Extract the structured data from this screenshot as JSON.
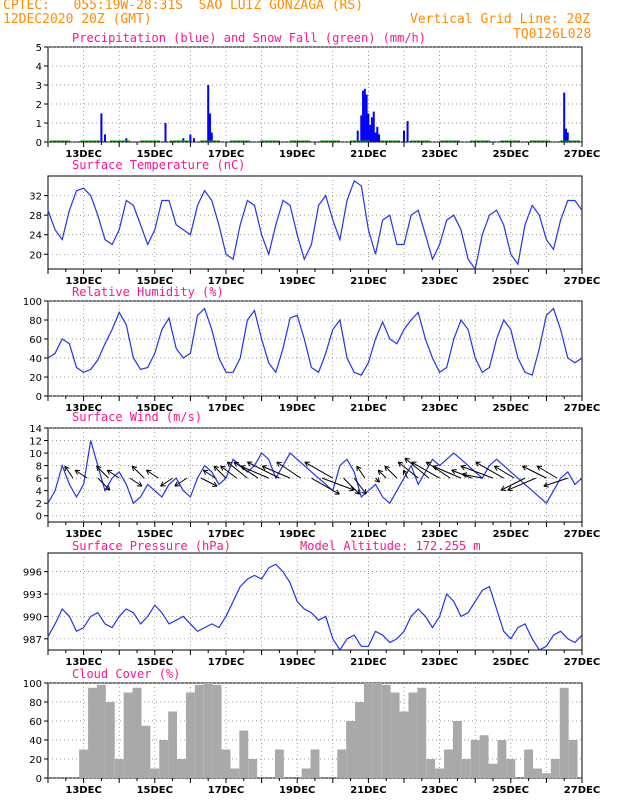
{
  "header": {
    "line1": "CPTEC:   055:19W-28:31S  SAO LUIZ GONZAGA (RS)",
    "line2_left": "12DEC2020 20Z (GMT)",
    "line2_right": "Vertical Grid Line: 20Z",
    "line3_right": "TQ0126L028"
  },
  "days": [
    "13DEC",
    "15DEC",
    "17DEC",
    "19DEC",
    "21DEC",
    "23DEC",
    "25DEC",
    "27DEC"
  ],
  "colors": {
    "title": "#ff1493",
    "header": "#ff8c00",
    "rain": "#0000ff",
    "snow": "#00aa00",
    "line": "#2233ee",
    "cloud": "#a9a9a9"
  },
  "chart_data": [
    {
      "type": "bar",
      "title": "Precipitation (blue) and Snow Fall (green) (mm/h)",
      "ylim": [
        0,
        5
      ],
      "yticks": [
        0,
        1,
        2,
        3,
        4,
        5
      ],
      "series": [
        {
          "name": "Precipitation",
          "points": [
            [
              13.5,
              1.5
            ],
            [
              13.6,
              0.4
            ],
            [
              14.2,
              0.2
            ],
            [
              15.3,
              1.0
            ],
            [
              15.8,
              0.2
            ],
            [
              16.0,
              0.4
            ],
            [
              16.1,
              0.2
            ],
            [
              16.5,
              3.0
            ],
            [
              16.55,
              1.5
            ],
            [
              16.6,
              0.5
            ],
            [
              20.7,
              0.6
            ],
            [
              20.8,
              1.4
            ],
            [
              20.85,
              2.7
            ],
            [
              20.9,
              2.8
            ],
            [
              20.95,
              2.5
            ],
            [
              21.0,
              1.5
            ],
            [
              21.05,
              0.9
            ],
            [
              21.1,
              1.3
            ],
            [
              21.15,
              1.6
            ],
            [
              21.2,
              0.5
            ],
            [
              21.25,
              0.8
            ],
            [
              21.3,
              0.4
            ],
            [
              22.0,
              0.6
            ],
            [
              22.1,
              1.1
            ],
            [
              26.5,
              2.6
            ],
            [
              26.55,
              0.7
            ],
            [
              26.6,
              0.5
            ]
          ]
        },
        {
          "name": "Snow Fall",
          "points": []
        }
      ]
    },
    {
      "type": "line",
      "title": "Surface Temperature (nC)",
      "ylim": [
        17,
        36
      ],
      "yticks": [
        20,
        24,
        28,
        32
      ],
      "x": [
        12.0,
        12.2,
        12.4,
        12.6,
        12.8,
        13.0,
        13.2,
        13.4,
        13.6,
        13.8,
        14.0,
        14.2,
        14.4,
        14.6,
        14.8,
        15.0,
        15.2,
        15.4,
        15.6,
        15.8,
        16.0,
        16.2,
        16.4,
        16.6,
        16.8,
        17.0,
        17.2,
        17.4,
        17.6,
        17.8,
        18.0,
        18.2,
        18.4,
        18.6,
        18.8,
        19.0,
        19.2,
        19.4,
        19.6,
        19.8,
        20.0,
        20.2,
        20.4,
        20.6,
        20.8,
        21.0,
        21.2,
        21.4,
        21.6,
        21.8,
        22.0,
        22.2,
        22.4,
        22.6,
        22.8,
        23.0,
        23.2,
        23.4,
        23.6,
        23.8,
        24.0,
        24.2,
        24.4,
        24.6,
        24.8,
        25.0,
        25.2,
        25.4,
        25.6,
        25.8,
        26.0,
        26.2,
        26.4,
        26.6,
        26.8,
        27.0
      ],
      "values": [
        29,
        25,
        23,
        29,
        33,
        33.5,
        32,
        28,
        23,
        22,
        25,
        31,
        30,
        26,
        22,
        25,
        31,
        31,
        26,
        25,
        24,
        30,
        33,
        31,
        26,
        20,
        19,
        26,
        31,
        30,
        24,
        20,
        26,
        31,
        30,
        24,
        19,
        22,
        30,
        32,
        27,
        23,
        31,
        35,
        34,
        25,
        20,
        27,
        28,
        22,
        22,
        28,
        29,
        24,
        19,
        22,
        27,
        28,
        25,
        19,
        17,
        24,
        28,
        29,
        26,
        20,
        18,
        26,
        30,
        28,
        23,
        21,
        27,
        31,
        31,
        29
      ]
    },
    {
      "type": "line",
      "title": "Relative Humidity (%)",
      "ylim": [
        0,
        100
      ],
      "yticks": [
        0,
        20,
        40,
        60,
        80,
        100
      ],
      "x": [
        12.0,
        12.2,
        12.4,
        12.6,
        12.8,
        13.0,
        13.2,
        13.4,
        13.6,
        13.8,
        14.0,
        14.2,
        14.4,
        14.6,
        14.8,
        15.0,
        15.2,
        15.4,
        15.6,
        15.8,
        16.0,
        16.2,
        16.4,
        16.6,
        16.8,
        17.0,
        17.2,
        17.4,
        17.6,
        17.8,
        18.0,
        18.2,
        18.4,
        18.6,
        18.8,
        19.0,
        19.2,
        19.4,
        19.6,
        19.8,
        20.0,
        20.2,
        20.4,
        20.6,
        20.8,
        21.0,
        21.2,
        21.4,
        21.6,
        21.8,
        22.0,
        22.2,
        22.4,
        22.6,
        22.8,
        23.0,
        23.2,
        23.4,
        23.6,
        23.8,
        24.0,
        24.2,
        24.4,
        24.6,
        24.8,
        25.0,
        25.2,
        25.4,
        25.6,
        25.8,
        26.0,
        26.2,
        26.4,
        26.6,
        26.8,
        27.0
      ],
      "values": [
        40,
        45,
        60,
        55,
        30,
        25,
        28,
        38,
        55,
        70,
        88,
        75,
        40,
        28,
        30,
        45,
        70,
        82,
        50,
        40,
        45,
        85,
        92,
        70,
        40,
        25,
        25,
        40,
        80,
        90,
        60,
        35,
        25,
        50,
        82,
        85,
        60,
        30,
        25,
        45,
        70,
        80,
        40,
        25,
        22,
        35,
        60,
        78,
        60,
        55,
        70,
        80,
        88,
        60,
        40,
        25,
        30,
        60,
        80,
        70,
        40,
        25,
        30,
        60,
        80,
        70,
        40,
        25,
        22,
        50,
        85,
        92,
        70,
        40,
        35,
        40
      ]
    },
    {
      "type": "line",
      "title": "Surface Wind (m/s)",
      "ylim": [
        -1,
        14
      ],
      "yticks": [
        0,
        2,
        4,
        6,
        8,
        10,
        12,
        14
      ],
      "x": [
        12.0,
        12.2,
        12.4,
        12.6,
        12.8,
        13.0,
        13.2,
        13.4,
        13.6,
        13.8,
        14.0,
        14.2,
        14.4,
        14.6,
        14.8,
        15.0,
        15.2,
        15.4,
        15.6,
        15.8,
        16.0,
        16.2,
        16.4,
        16.6,
        16.8,
        17.0,
        17.2,
        17.4,
        17.6,
        17.8,
        18.0,
        18.2,
        18.4,
        18.6,
        18.8,
        19.0,
        19.2,
        19.4,
        19.6,
        19.8,
        20.0,
        20.2,
        20.4,
        20.6,
        20.8,
        21.0,
        21.2,
        21.4,
        21.6,
        21.8,
        22.0,
        22.2,
        22.4,
        22.6,
        22.8,
        23.0,
        23.2,
        23.4,
        23.6,
        23.8,
        24.0,
        24.2,
        24.4,
        24.6,
        24.8,
        25.0,
        25.2,
        25.4,
        25.6,
        25.8,
        26.0,
        26.2,
        26.4,
        26.6,
        26.8,
        27.0
      ],
      "values": [
        2,
        4,
        8,
        5,
        3,
        5,
        12,
        8,
        4,
        6,
        7,
        5,
        2,
        3,
        5,
        4,
        3,
        5,
        6,
        4,
        3,
        6,
        8,
        7,
        5,
        6,
        9,
        8,
        7,
        8,
        10,
        9,
        6,
        8,
        10,
        9,
        8,
        7,
        6,
        5,
        4,
        8,
        9,
        7,
        3,
        4,
        5,
        3,
        2,
        4,
        6,
        8,
        5,
        7,
        9,
        8,
        9,
        10,
        9,
        8,
        7,
        6,
        8,
        9,
        8,
        7,
        6,
        5,
        4,
        3,
        2,
        4,
        6,
        7,
        5,
        6
      ]
    },
    {
      "type": "line",
      "title": "Surface Pressure (hPa)",
      "annotation": "Model Altitude: 172.255 m",
      "ylim": [
        985.5,
        998.5
      ],
      "yticks": [
        987,
        990,
        993,
        996
      ],
      "x": [
        12.0,
        12.2,
        12.4,
        12.6,
        12.8,
        13.0,
        13.2,
        13.4,
        13.6,
        13.8,
        14.0,
        14.2,
        14.4,
        14.6,
        14.8,
        15.0,
        15.2,
        15.4,
        15.6,
        15.8,
        16.0,
        16.2,
        16.4,
        16.6,
        16.8,
        17.0,
        17.2,
        17.4,
        17.6,
        17.8,
        18.0,
        18.2,
        18.4,
        18.6,
        18.8,
        19.0,
        19.2,
        19.4,
        19.6,
        19.8,
        20.0,
        20.2,
        20.4,
        20.6,
        20.8,
        21.0,
        21.2,
        21.4,
        21.6,
        21.8,
        22.0,
        22.2,
        22.4,
        22.6,
        22.8,
        23.0,
        23.2,
        23.4,
        23.6,
        23.8,
        24.0,
        24.2,
        24.4,
        24.6,
        24.8,
        25.0,
        25.2,
        25.4,
        25.6,
        25.8,
        26.0,
        26.2,
        26.4,
        26.6,
        26.8,
        27.0
      ],
      "values": [
        987.3,
        989,
        991,
        990,
        988,
        988.5,
        990,
        990.5,
        989,
        988.5,
        990,
        991,
        990.5,
        989,
        990,
        991.5,
        990.5,
        989,
        989.5,
        990,
        989,
        988,
        988.5,
        989,
        988.5,
        990,
        992,
        994,
        995,
        995.5,
        995,
        996.5,
        997,
        996,
        994.5,
        992,
        991,
        990.5,
        989.5,
        990,
        987,
        985.5,
        987,
        987.5,
        986,
        986,
        988,
        987.5,
        986.5,
        987,
        988,
        990,
        991,
        990,
        988.5,
        990,
        993,
        992,
        990,
        990.5,
        992,
        993.5,
        994,
        991,
        988,
        987,
        988.5,
        989,
        987,
        985.5,
        986,
        987.5,
        988,
        987,
        986.5,
        987.5
      ]
    },
    {
      "type": "bar",
      "title": "Cloud Cover (%)",
      "ylim": [
        0,
        100
      ],
      "yticks": [
        0,
        20,
        40,
        60,
        80,
        100
      ],
      "x": [
        12.0,
        12.25,
        12.5,
        12.75,
        13.0,
        13.25,
        13.5,
        13.75,
        14.0,
        14.25,
        14.5,
        14.75,
        15.0,
        15.25,
        15.5,
        15.75,
        16.0,
        16.25,
        16.5,
        16.75,
        17.0,
        17.25,
        17.5,
        17.75,
        18.0,
        18.25,
        18.5,
        18.75,
        19.0,
        19.25,
        19.5,
        19.75,
        20.0,
        20.25,
        20.5,
        20.75,
        21.0,
        21.25,
        21.5,
        21.75,
        22.0,
        22.25,
        22.5,
        22.75,
        23.0,
        23.25,
        23.5,
        23.75,
        24.0,
        24.25,
        24.5,
        24.75,
        25.0,
        25.25,
        25.5,
        25.75,
        26.0,
        26.25,
        26.5,
        26.75,
        27.0
      ],
      "values": [
        0,
        0,
        0,
        0,
        30,
        95,
        98,
        80,
        20,
        90,
        95,
        55,
        10,
        40,
        70,
        20,
        90,
        98,
        100,
        98,
        30,
        10,
        50,
        20,
        0,
        0,
        30,
        0,
        0,
        10,
        30,
        0,
        0,
        30,
        60,
        80,
        100,
        100,
        98,
        90,
        70,
        90,
        95,
        20,
        10,
        30,
        60,
        20,
        40,
        45,
        15,
        40,
        20,
        0,
        30,
        10,
        5,
        20,
        95,
        40,
        0
      ]
    }
  ],
  "wind_arrows": {
    "x": [
      12.7,
      13.1,
      13.4,
      13.7,
      14.0,
      14.3,
      14.7,
      15.1,
      15.5,
      15.9,
      16.3,
      16.7,
      17.0,
      17.3,
      17.6,
      17.9,
      18.2,
      18.5,
      18.8,
      19.1,
      19.4,
      19.7,
      20.0,
      20.3,
      20.6,
      20.9,
      21.2,
      21.5,
      21.8,
      22.1,
      22.4,
      22.7,
      23.0,
      23.3,
      23.6,
      23.9,
      24.2,
      24.5,
      24.8,
      25.1,
      25.4,
      25.7,
      26.0,
      26.3,
      26.6
    ],
    "u": [
      -2,
      -3,
      3,
      -3,
      -3,
      3,
      -3,
      -3,
      -3,
      -3,
      4,
      -3,
      -3,
      -4,
      -5,
      -6,
      -7,
      -8,
      -7,
      -6,
      7,
      8,
      -7,
      4,
      3,
      -2,
      1,
      -2,
      -3,
      -1,
      -5,
      -6,
      -7,
      -6,
      -7,
      -5,
      -5,
      -8,
      -7,
      -5,
      -6,
      -7,
      -6,
      -5,
      -6
    ],
    "v": [
      3,
      2,
      -3,
      3,
      2,
      -2,
      3,
      2,
      -2,
      -2,
      -2,
      2,
      3,
      3,
      4,
      4,
      3,
      4,
      3,
      4,
      -4,
      -3,
      4,
      -4,
      -4,
      3,
      -1,
      2,
      3,
      2,
      4,
      5,
      4,
      4,
      3,
      2,
      1,
      3,
      4,
      3,
      -3,
      -3,
      3,
      3,
      -2
    ]
  }
}
